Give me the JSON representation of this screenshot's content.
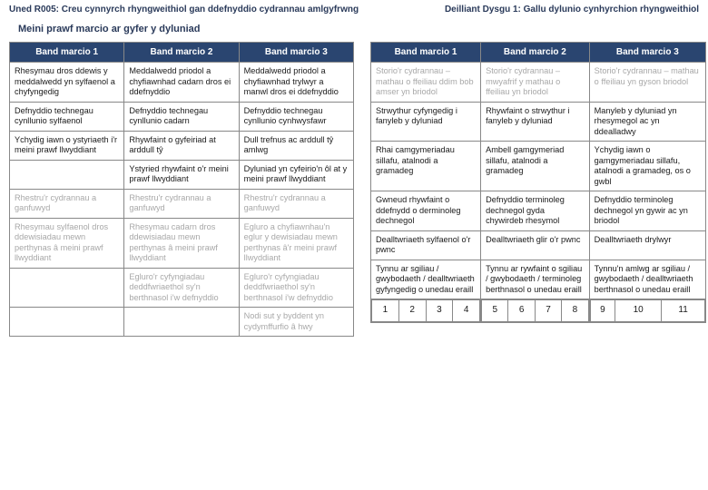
{
  "header_left": "Uned R005: Creu cynnyrch rhyngweithiol gan ddefnyddio cydrannau amlgyfrwng",
  "header_right": "Deilliant Dysgu 1: Gallu dylunio cynhyrchion rhyngweithiol",
  "subheader": "Meini prawf marcio ar gyfer y dyluniad",
  "bands": {
    "b1": "Band marcio 1",
    "b2": "Band marcio 2",
    "b3": "Band marcio  3"
  },
  "left_rows": [
    [
      "Rhesymau dros ddewis y meddalwedd yn sylfaenol a chyfyngedig",
      "Meddalwedd priodol a chyfiawnhad cadarn dros ei ddefnyddio",
      "Meddalwedd priodol a chyfiawnhad trylwyr a manwl dros ei ddefnyddio"
    ],
    [
      "Defnyddio technegau cynllunio sylfaenol",
      "Defnyddio technegau cynllunio cadarn",
      "Defnyddio technegau cynllunio cynhwysfawr"
    ],
    [
      "Ychydig iawn o ystyriaeth i'r meini prawf llwyddiant",
      "Rhywfaint o gyfeiriad at arddull tŷ",
      "Dull trefnus ac arddull tŷ amlwg"
    ],
    [
      "",
      "Ystyried rhywfaint o'r meini prawf llwyddiant",
      "Dyluniad yn cyfeirio'n ôl at y meini prawf llwyddiant"
    ],
    [
      "Rhestru'r cydrannau a ganfuwyd",
      "Rhestru'r cydrannau a ganfuwyd",
      "Rhestru'r cydrannau a ganfuwyd"
    ],
    [
      "Rhesymau sylfaenol dros ddewisiadau mewn perthynas â meini prawf llwyddiant",
      "Rhesymau cadarn dros ddewisiadau mewn perthynas â meini prawf llwyddiant",
      "Egluro a chyfiawnhau'n eglur y dewisiadau mewn perthynas â'r meini prawf llwyddiant"
    ],
    [
      "",
      "Egluro'r cyfyngiadau deddfwriaethol sy'n berthnasol i'w defnyddio",
      "Egluro'r cyfyngiadau deddfwriaethol sy'n berthnasol i'w defnyddio"
    ],
    [
      "",
      "",
      "Nodi sut y byddent yn cydymffurfio â hwy"
    ]
  ],
  "left_faded": [
    [
      false,
      false,
      false
    ],
    [
      false,
      false,
      false
    ],
    [
      false,
      false,
      false
    ],
    [
      false,
      false,
      false
    ],
    [
      true,
      true,
      true
    ],
    [
      true,
      true,
      true
    ],
    [
      false,
      true,
      true
    ],
    [
      false,
      false,
      true
    ]
  ],
  "right_rows": [
    [
      "Storio'r cydrannau – mathau o ffeiliau ddim bob amser yn briodol",
      "Storio'r cydrannau – mwyafrif y mathau o ffeiliau yn briodol",
      "Storio'r cydrannau – mathau o ffeiliau yn gyson briodol"
    ],
    [
      "Strwythur cyfyngedig i fanyleb y dyluniad",
      "Rhywfaint o strwythur i fanyleb y dyluniad",
      "Manyleb y dyluniad yn rhesymegol ac yn ddealladwy"
    ],
    [
      "Rhai camgymeriadau sillafu, atalnodi a gramadeg",
      "Ambell gamgymeriad sillafu, atalnodi a gramadeg",
      "Ychydig iawn o gamgymeriadau sillafu, atalnodi a gramadeg, os o gwbl"
    ],
    [
      "Gwneud rhywfaint o ddefnydd o derminoleg dechnegol",
      "Defnyddio terminoleg dechnegol gyda chywirdeb rhesymol",
      "Defnyddio terminoleg dechnegol yn gywir ac yn briodol"
    ],
    [
      "Dealltwriaeth sylfaenol o'r pwnc",
      "Dealltwriaeth glir o'r pwnc",
      "Dealltwriaeth drylwyr"
    ],
    [
      "Tynnu ar sgiliau / gwybodaeth / dealltwriaeth gyfyngedig o unedau eraill",
      "Tynnu ar rywfaint o sgiliau / gwybodaeth / terminoleg berthnasol o unedau eraill",
      "Tynnu'n amlwg ar sgiliau / gwybodaeth / dealltwriaeth berthnasol o unedau eraill"
    ]
  ],
  "right_faded": [
    [
      true,
      true,
      true
    ],
    [
      false,
      false,
      false
    ],
    [
      false,
      false,
      false
    ],
    [
      false,
      false,
      false
    ],
    [
      false,
      false,
      false
    ],
    [
      false,
      false,
      false
    ]
  ],
  "nums": [
    "1",
    "2",
    "3",
    "4",
    "5",
    "6",
    "7",
    "8",
    "9",
    "10",
    "11"
  ]
}
